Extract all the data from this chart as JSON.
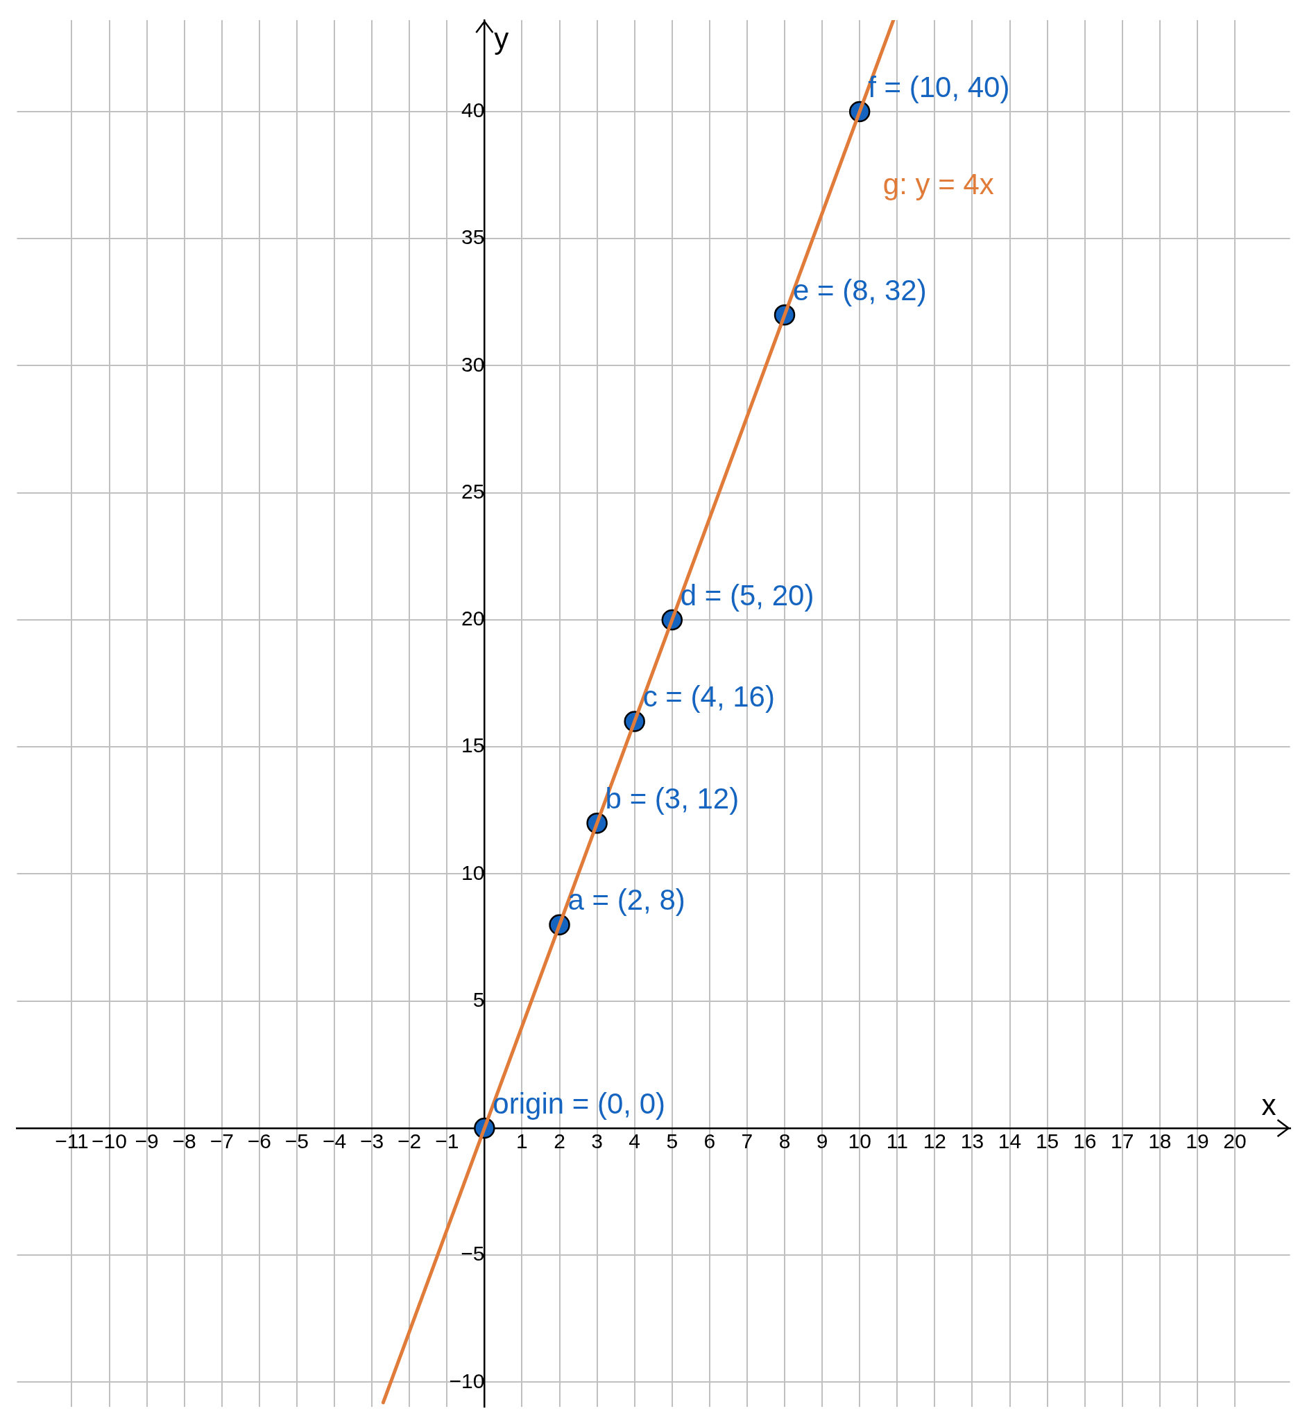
{
  "chart_data": {
    "type": "scatter",
    "xlabel": "x",
    "ylabel": "y",
    "xlim": [
      -12.46,
      21.47
    ],
    "ylim": [
      -10.97,
      43.6
    ],
    "xticks": [
      {
        "value": -11,
        "label": "−11"
      },
      {
        "value": -10,
        "label": "−10"
      },
      {
        "value": -9,
        "label": "−9"
      },
      {
        "value": -8,
        "label": "−8"
      },
      {
        "value": -7,
        "label": "−7"
      },
      {
        "value": -6,
        "label": "−6"
      },
      {
        "value": -5,
        "label": "−5"
      },
      {
        "value": -4,
        "label": "−4"
      },
      {
        "value": -3,
        "label": "−3"
      },
      {
        "value": -2,
        "label": "−2"
      },
      {
        "value": -1,
        "label": "−1"
      },
      {
        "value": 0,
        "label": null
      },
      1,
      2,
      3,
      4,
      5,
      6,
      7,
      8,
      9,
      10,
      11,
      12,
      13,
      14,
      15,
      16,
      17,
      18,
      19,
      20
    ],
    "yticks": [
      {
        "value": -10,
        "label": "−10"
      },
      {
        "value": -5,
        "label": "−5"
      },
      {
        "value": 0,
        "label": null
      },
      5,
      10,
      15,
      20,
      25,
      30,
      35,
      40
    ],
    "grid": true,
    "legend": false,
    "marker": "circle",
    "series": [
      {
        "type": "line",
        "name": "g: y = 4x",
        "color": "#e07b39",
        "x": [
          -2.7,
          10.9
        ],
        "values": [
          -10.8,
          43.6
        ],
        "line_style": "solid",
        "marker": "none"
      },
      {
        "type": "scatter",
        "color": "#1565c0",
        "x": [
          0,
          2,
          3,
          4,
          5,
          8,
          10
        ],
        "values": [
          0,
          8,
          12,
          16,
          20,
          32,
          40
        ]
      }
    ],
    "annotations": [
      {
        "text": "origin = (0, 0)",
        "x": 0,
        "y": 0
      },
      {
        "text": "a = (2, 8)",
        "x": 2,
        "y": 8
      },
      {
        "text": "b = (3, 12)",
        "x": 3,
        "y": 12
      },
      {
        "text": "c = (4, 16)",
        "x": 4,
        "y": 16
      },
      {
        "text": "d = (5, 20)",
        "x": 5,
        "y": 20
      },
      {
        "text": "e = (8, 32)",
        "x": 8,
        "y": 32
      },
      {
        "text": "f = (10, 40)",
        "x": 10,
        "y": 40
      }
    ]
  }
}
